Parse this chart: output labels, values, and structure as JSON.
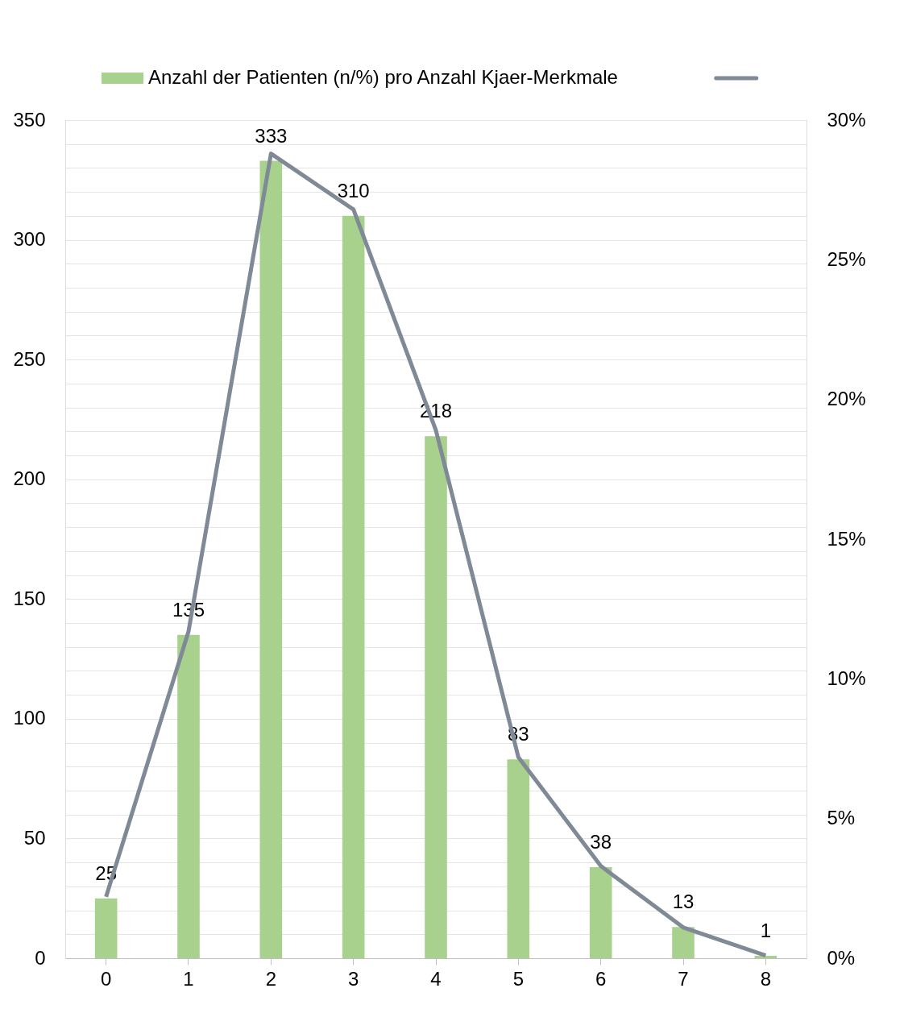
{
  "chart_data": {
    "type": "bar",
    "categories": [
      "0",
      "1",
      "2",
      "3",
      "4",
      "5",
      "6",
      "7",
      "8"
    ],
    "series": [
      {
        "name": "Anzahl der Patienten (n/%) pro Anzahl Kjaer-Merkmale",
        "color": "#a9d18e",
        "values": [
          25,
          135,
          333,
          310,
          218,
          83,
          38,
          13,
          1
        ],
        "value_labels": [
          "25",
          "135",
          "333",
          "310",
          "218",
          "83",
          "38",
          "13",
          "1"
        ]
      },
      {
        "type": "line",
        "axis": "y2",
        "color": "#7f8a96",
        "values": [
          2.2,
          11.7,
          28.8,
          26.8,
          18.9,
          7.2,
          3.3,
          1.1,
          0.1
        ]
      }
    ],
    "ylim": [
      0,
      350
    ],
    "yticks": [
      0,
      {
        "value": 10,
        "label": null
      },
      {
        "value": 20,
        "label": null
      },
      {
        "value": 30,
        "label": null
      },
      {
        "value": 40,
        "label": null
      },
      50,
      {
        "value": 60,
        "label": null
      },
      {
        "value": 70,
        "label": null
      },
      {
        "value": 80,
        "label": null
      },
      {
        "value": 90,
        "label": null
      },
      100,
      {
        "value": 110,
        "label": null
      },
      {
        "value": 120,
        "label": null
      },
      {
        "value": 130,
        "label": null
      },
      {
        "value": 140,
        "label": null
      },
      150,
      {
        "value": 160,
        "label": null
      },
      {
        "value": 170,
        "label": null
      },
      {
        "value": 180,
        "label": null
      },
      {
        "value": 190,
        "label": null
      },
      200,
      {
        "value": 210,
        "label": null
      },
      {
        "value": 220,
        "label": null
      },
      {
        "value": 230,
        "label": null
      },
      {
        "value": 240,
        "label": null
      },
      250,
      {
        "value": 260,
        "label": null
      },
      {
        "value": 270,
        "label": null
      },
      {
        "value": 280,
        "label": null
      },
      {
        "value": 290,
        "label": null
      },
      300,
      {
        "value": 310,
        "label": null
      },
      {
        "value": 320,
        "label": null
      },
      {
        "value": 330,
        "label": null
      },
      {
        "value": 340,
        "label": null
      },
      350
    ],
    "y2lim": [
      0,
      30
    ],
    "y2ticks": [
      {
        "value": 0,
        "label": "0%"
      },
      {
        "value": 5,
        "label": "5%"
      },
      {
        "value": 10,
        "label": "10%"
      },
      {
        "value": 15,
        "label": "15%"
      },
      {
        "value": 20,
        "label": "20%"
      },
      {
        "value": 25,
        "label": "25%"
      },
      {
        "value": 30,
        "label": "30%"
      }
    ],
    "grid": "y",
    "legend": "top",
    "line_style": "solid",
    "marker": "none"
  }
}
